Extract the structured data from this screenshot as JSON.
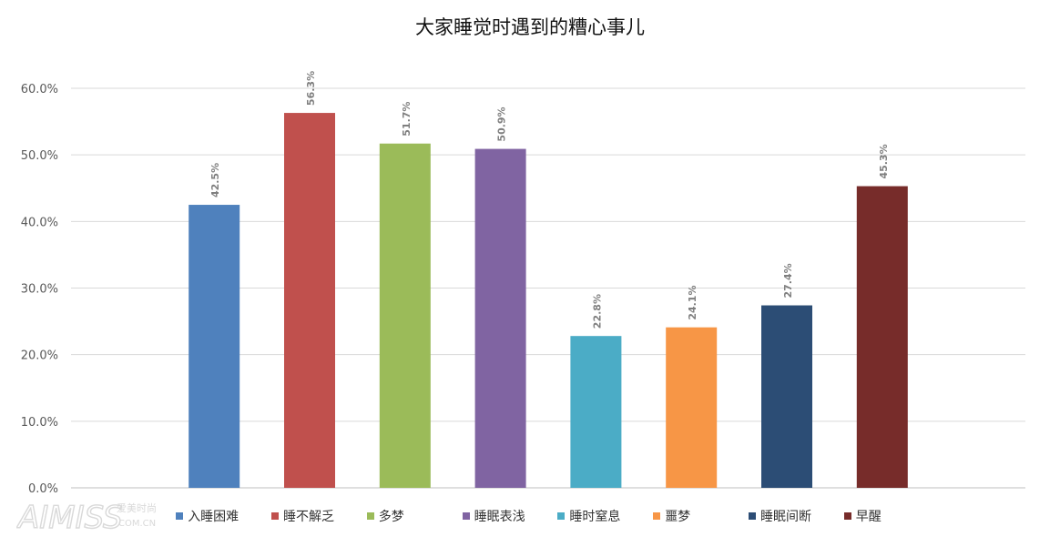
{
  "chart_data": {
    "type": "bar",
    "title": "大家睡觉时遇到的糟心事儿",
    "categories": [
      "入睡困难",
      "睡不解乏",
      "多梦",
      "睡眠表浅",
      "睡时窒息",
      "噩梦",
      "睡眠间断",
      "早醒"
    ],
    "values": [
      42.5,
      56.3,
      51.7,
      50.9,
      22.8,
      24.1,
      27.4,
      45.3
    ],
    "data_labels": [
      "42.5%",
      "56.3%",
      "51.7%",
      "50.9%",
      "22.8%",
      "24.1%",
      "27.4%",
      "45.3%"
    ],
    "colors": [
      "#4f81bd",
      "#c0504d",
      "#9bbb59",
      "#8064a2",
      "#4bacc6",
      "#f79646",
      "#2c4d75",
      "#772c2a"
    ],
    "ylim": [
      0,
      60
    ],
    "yticks": [
      "0.0%",
      "10.0%",
      "20.0%",
      "30.0%",
      "40.0%",
      "50.0%",
      "60.0%"
    ],
    "ytick_values": [
      0,
      10,
      20,
      30,
      40,
      50,
      60
    ],
    "grid": true,
    "legend_position": "bottom",
    "xlabel": "",
    "ylabel": ""
  },
  "watermark": {
    "brand": "AIMISS",
    "cn_text": "爱美时尚",
    "domain": "COM.CN"
  }
}
